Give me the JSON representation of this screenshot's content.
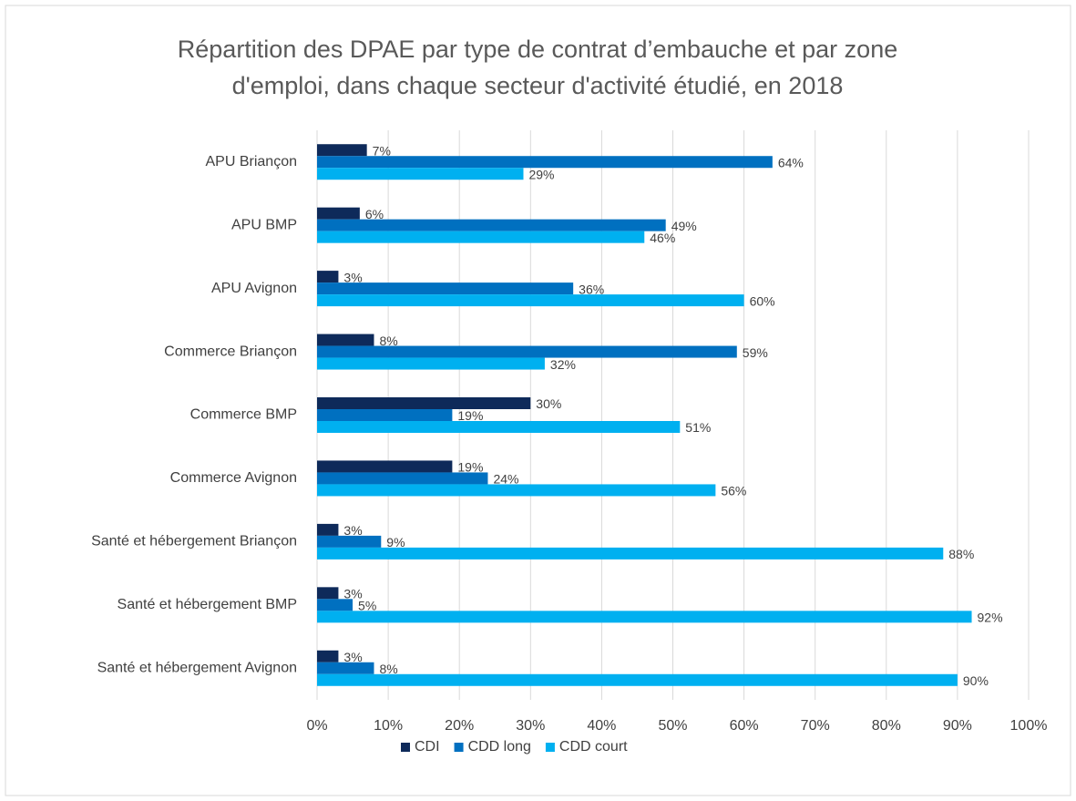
{
  "chart_data": {
    "type": "bar",
    "orientation": "horizontal",
    "title": [
      "Répartition des DPAE par type de contrat d’embauche et par zone",
      "d'emploi, dans chaque secteur d'activité étudié, en 2018"
    ],
    "categories": [
      "APU Briançon",
      "APU BMP",
      "APU Avignon",
      "Commerce Briançon",
      "Commerce BMP",
      "Commerce Avignon",
      "Santé et hébergement Briançon",
      "Santé et hébergement BMP",
      "Santé et hébergement Avignon"
    ],
    "series": [
      {
        "name": "CDI",
        "color": "#0e2a5a",
        "values": [
          7,
          6,
          3,
          8,
          30,
          19,
          3,
          3,
          3
        ],
        "value_labels": [
          "7%",
          "6%",
          "3%",
          "8%",
          "30%",
          "19%",
          "3%",
          "3%",
          "3%"
        ]
      },
      {
        "name": "CDD long",
        "color": "#0070c0",
        "values": [
          64,
          49,
          36,
          59,
          19,
          24,
          9,
          5,
          8
        ],
        "value_labels": [
          "64%",
          "49%",
          "36%",
          "59%",
          "19%",
          "24%",
          "9%",
          "5%",
          "8%"
        ]
      },
      {
        "name": "CDD court",
        "color": "#00b0f0",
        "values": [
          29,
          46,
          60,
          32,
          51,
          56,
          88,
          92,
          90
        ],
        "value_labels": [
          "29%",
          "46%",
          "60%",
          "32%",
          "51%",
          "56%",
          "88%",
          "92%",
          "90%"
        ]
      }
    ],
    "xlim": [
      0,
      100
    ],
    "xticks": [
      {
        "value": 0,
        "label": "0%"
      },
      {
        "value": 10,
        "label": "10%"
      },
      {
        "value": 20,
        "label": "20%"
      },
      {
        "value": 30,
        "label": "30%"
      },
      {
        "value": 40,
        "label": "40%"
      },
      {
        "value": 50,
        "label": "50%"
      },
      {
        "value": 60,
        "label": "60%"
      },
      {
        "value": 70,
        "label": "70%"
      },
      {
        "value": 80,
        "label": "80%"
      },
      {
        "value": 90,
        "label": "90%"
      },
      {
        "value": 100,
        "label": "100%"
      }
    ],
    "grid": true,
    "legend": "bottom"
  }
}
